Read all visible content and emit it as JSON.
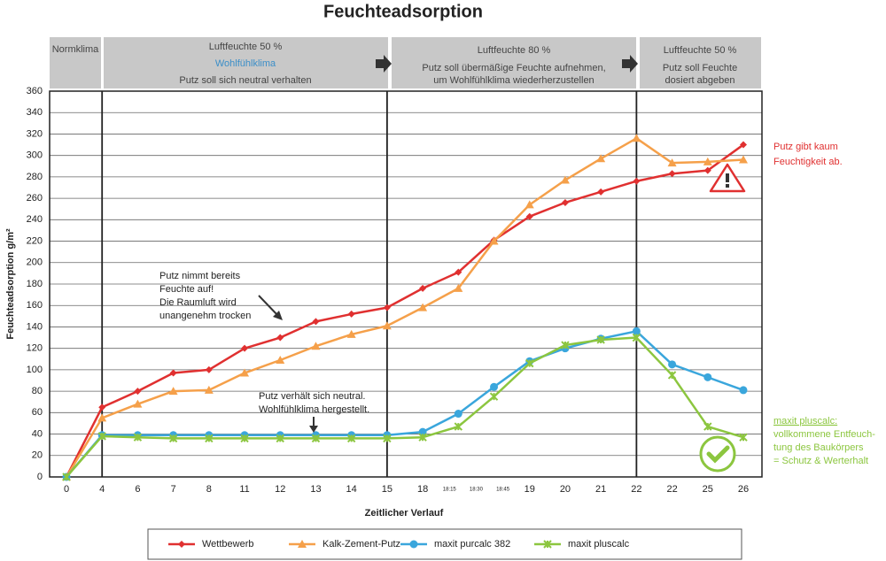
{
  "chart_data": {
    "type": "line",
    "title": "Feuchteadsorption",
    "y_label": "Feuchteadsorption g/m²",
    "x_label": "Zeitlicher Verlauf",
    "bands": [
      {
        "lines": [
          "Normklima"
        ]
      },
      {
        "lines": [
          "Luftfeuchte 50 %",
          "Wohlfühlklima",
          "Putz soll sich neutral verhalten"
        ]
      },
      {
        "lines": [
          "Luftfeuchte 80 %",
          "Putz soll übermäßige Feuchte aufnehmen,",
          "um Wohlfühlklima wiederherzustellen"
        ]
      },
      {
        "lines": [
          "Luftfeuchte 50 %",
          "Putz soll Feuchte",
          "dosiert abgeben"
        ]
      }
    ],
    "categories": [
      "0",
      "4",
      "6",
      "7",
      "8",
      "11",
      "12",
      "13",
      "14",
      "15",
      "18",
      null,
      null,
      "19",
      "20",
      "21",
      "22",
      "22",
      "25",
      "26"
    ],
    "minor_labels": [
      "18:15",
      "18:30",
      "18:45"
    ],
    "ylim": [
      0,
      360
    ],
    "yticks": [
      0,
      20,
      40,
      60,
      80,
      100,
      120,
      140,
      160,
      180,
      200,
      220,
      240,
      260,
      280,
      300,
      320,
      340,
      360
    ],
    "grid": true,
    "series": [
      {
        "name": "Wettbewerb",
        "color": "#e03030",
        "marker": "diamond",
        "values": [
          0,
          65,
          80,
          97,
          100,
          120,
          130,
          145,
          152,
          158,
          176,
          191,
          221,
          243,
          256,
          266,
          276,
          283,
          286,
          310
        ]
      },
      {
        "name": "Kalk-Zement-Putz",
        "color": "#f5a04a",
        "marker": "triangle",
        "values": [
          0,
          55,
          68,
          80,
          81,
          97,
          109,
          122,
          133,
          141,
          158,
          176,
          220,
          254,
          277,
          297,
          316,
          293,
          294,
          296
        ]
      },
      {
        "name": "maxit purcalc 382",
        "color": "#3aa6dc",
        "marker": "circle",
        "values": [
          0,
          39,
          39,
          39,
          39,
          39,
          39,
          39,
          39,
          39,
          42,
          59,
          84,
          108,
          120,
          129,
          136,
          105,
          93,
          81
        ]
      },
      {
        "name": "maxit pluscalc",
        "color": "#8cc63f",
        "marker": "cross",
        "values": [
          0,
          38,
          37,
          36,
          36,
          36,
          36,
          36,
          36,
          36,
          37,
          47,
          75,
          106,
          123,
          128,
          130,
          95,
          47,
          37
        ]
      }
    ],
    "annotations": {
      "dry": [
        "Putz nimmt bereits",
        "Feuchte auf!",
        "Die Raumluft wird",
        "unangenehm trocken"
      ],
      "neutral": [
        "Putz verhält sich neutral.",
        "Wohlfühlklima hergestellt."
      ],
      "red_note": [
        "Putz gibt kaum",
        "Feuchtigkeit ab."
      ],
      "green_note": [
        "maxit pluscalc:",
        "vollkommene Entfeuch-",
        "tung des Baukörpers",
        "= Schutz & Werterhalt"
      ]
    }
  }
}
